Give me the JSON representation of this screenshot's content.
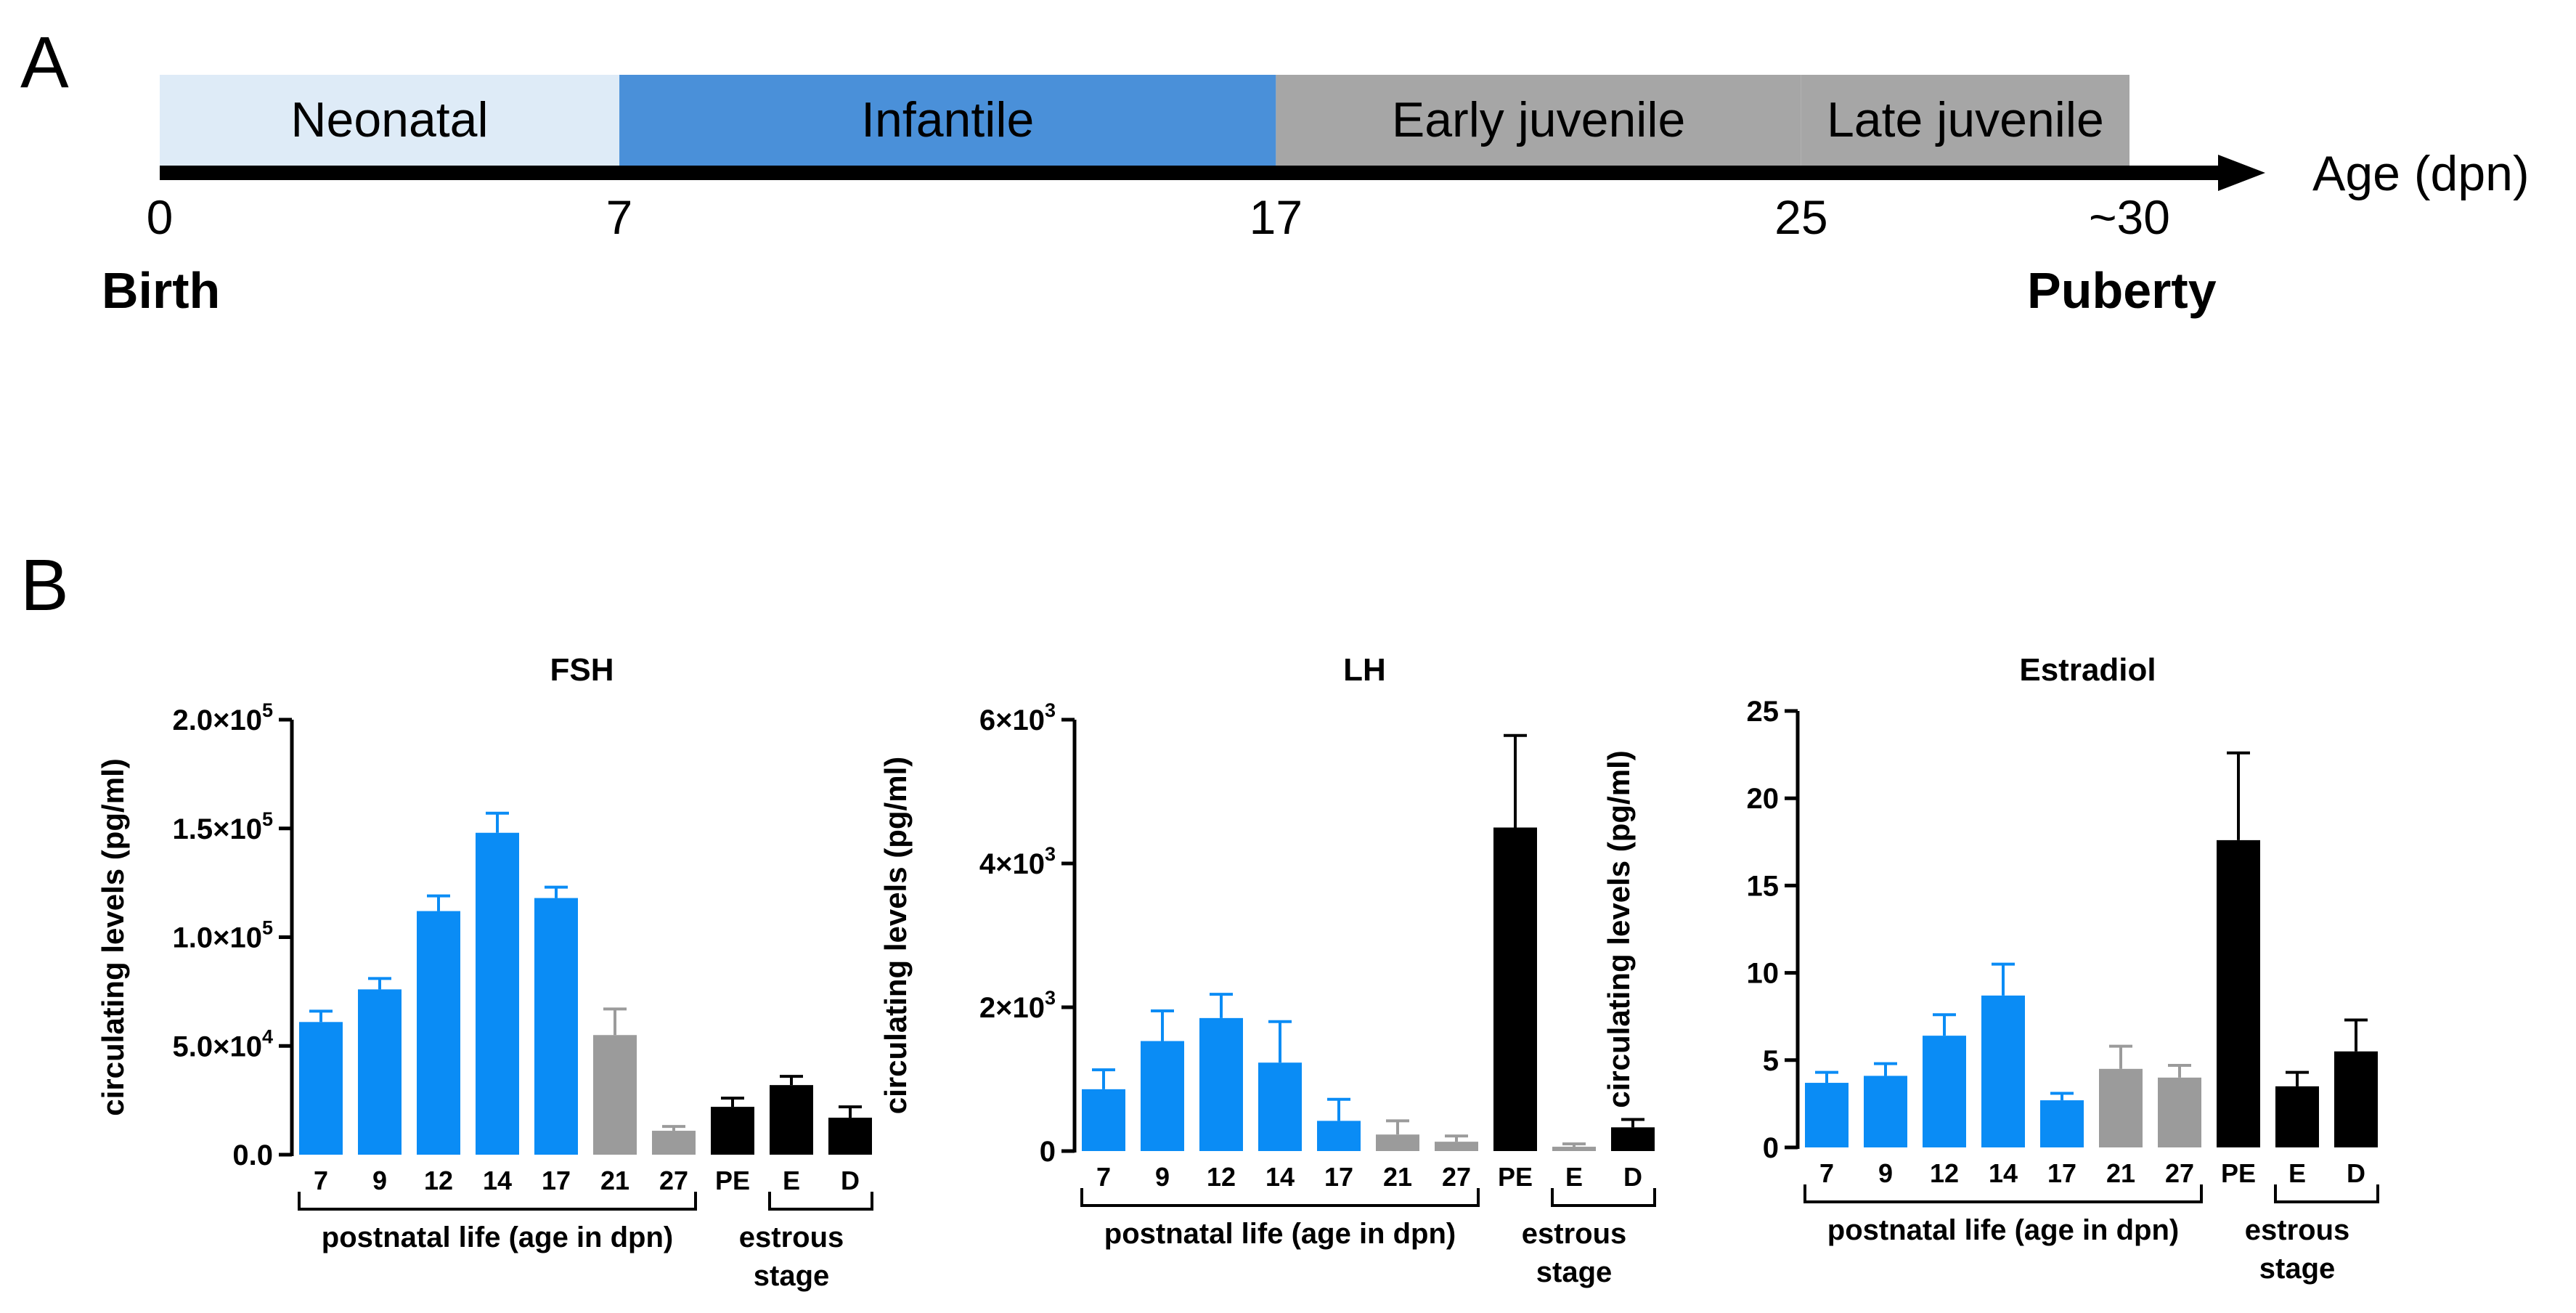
{
  "panel_a": {
    "letter": "A",
    "phases": [
      {
        "label": "Neonatal",
        "start": 0,
        "end": 7,
        "color": "#deebf7"
      },
      {
        "label": "Infantile",
        "start": 7,
        "end": 17,
        "color": "#4a90d9"
      },
      {
        "label": "Early juvenile",
        "start": 17,
        "end": 25,
        "color": "#a6a6a6"
      },
      {
        "label": "Late juvenile",
        "start": 25,
        "end": 30,
        "color": "#a6a6a6"
      }
    ],
    "ticks": [
      {
        "value": 0,
        "label": "0"
      },
      {
        "value": 7,
        "label": "7"
      },
      {
        "value": 17,
        "label": "17"
      },
      {
        "value": 25,
        "label": "25"
      },
      {
        "value": 30,
        "label": "~30"
      }
    ],
    "axis_label": "Age (dpn)",
    "birth_label": "Birth",
    "puberty_label": "Puberty"
  },
  "panel_b": {
    "letter": "B",
    "group_labels": {
      "postnatal": "postnatal life (age in dpn)",
      "estrous_line1": "estrous",
      "estrous_line2": "stage"
    }
  },
  "colors": {
    "blue": "#0a8cf5",
    "gray": "#9b9b9b",
    "black": "#000000"
  },
  "chart_data": [
    {
      "type": "bar",
      "title": "FSH",
      "ylabel": "circulating levels (pg/ml)",
      "ylim": [
        0,
        200000
      ],
      "yticks": [
        {
          "value": 0,
          "base": "0.0",
          "exp": ""
        },
        {
          "value": 50000,
          "base": "5.0×10",
          "exp": "4"
        },
        {
          "value": 100000,
          "base": "1.0×10",
          "exp": "5"
        },
        {
          "value": 150000,
          "base": "1.5×10",
          "exp": "5"
        },
        {
          "value": 200000,
          "base": "2.0×10",
          "exp": "5"
        }
      ],
      "categories": [
        "7",
        "9",
        "12",
        "14",
        "17",
        "21",
        "27",
        "PE",
        "E",
        "D"
      ],
      "values": [
        61000,
        76000,
        112000,
        148000,
        118000,
        55000,
        11000,
        22000,
        32000,
        17000
      ],
      "errors": [
        5000,
        5000,
        7000,
        9000,
        5000,
        12000,
        2000,
        4000,
        4000,
        5000
      ],
      "bar_colors": [
        "blue",
        "blue",
        "blue",
        "blue",
        "blue",
        "gray",
        "gray",
        "black",
        "black",
        "black"
      ]
    },
    {
      "type": "bar",
      "title": "LH",
      "ylabel": "circulating levels (pg/ml)",
      "ylim": [
        0,
        6000
      ],
      "yticks": [
        {
          "value": 0,
          "base": "0",
          "exp": ""
        },
        {
          "value": 2000,
          "base": "2×10",
          "exp": "3"
        },
        {
          "value": 4000,
          "base": "4×10",
          "exp": "3"
        },
        {
          "value": 6000,
          "base": "6×10",
          "exp": "3"
        }
      ],
      "categories": [
        "7",
        "9",
        "12",
        "14",
        "17",
        "21",
        "27",
        "PE",
        "E",
        "D"
      ],
      "values": [
        860,
        1530,
        1850,
        1230,
        420,
        230,
        130,
        4500,
        60,
        330
      ],
      "errors": [
        270,
        420,
        330,
        570,
        300,
        190,
        80,
        1280,
        40,
        110
      ],
      "bar_colors": [
        "blue",
        "blue",
        "blue",
        "blue",
        "blue",
        "gray",
        "gray",
        "black",
        "gray",
        "black"
      ]
    },
    {
      "type": "bar",
      "title": "Estradiol",
      "ylabel": "circulating levels (pg/ml)",
      "ylim": [
        0,
        25
      ],
      "yticks": [
        {
          "value": 0,
          "base": "0",
          "exp": ""
        },
        {
          "value": 5,
          "base": "5",
          "exp": ""
        },
        {
          "value": 10,
          "base": "10",
          "exp": ""
        },
        {
          "value": 15,
          "base": "15",
          "exp": ""
        },
        {
          "value": 20,
          "base": "20",
          "exp": ""
        },
        {
          "value": 25,
          "base": "25",
          "exp": ""
        }
      ],
      "categories": [
        "7",
        "9",
        "12",
        "14",
        "17",
        "21",
        "27",
        "PE",
        "E",
        "D"
      ],
      "values": [
        3.7,
        4.1,
        6.4,
        8.7,
        2.7,
        4.5,
        4.0,
        17.6,
        3.5,
        5.5
      ],
      "errors": [
        0.6,
        0.7,
        1.2,
        1.8,
        0.4,
        1.3,
        0.7,
        5.0,
        0.8,
        1.8
      ],
      "bar_colors": [
        "blue",
        "blue",
        "blue",
        "blue",
        "blue",
        "gray",
        "gray",
        "black",
        "black",
        "black"
      ]
    }
  ]
}
